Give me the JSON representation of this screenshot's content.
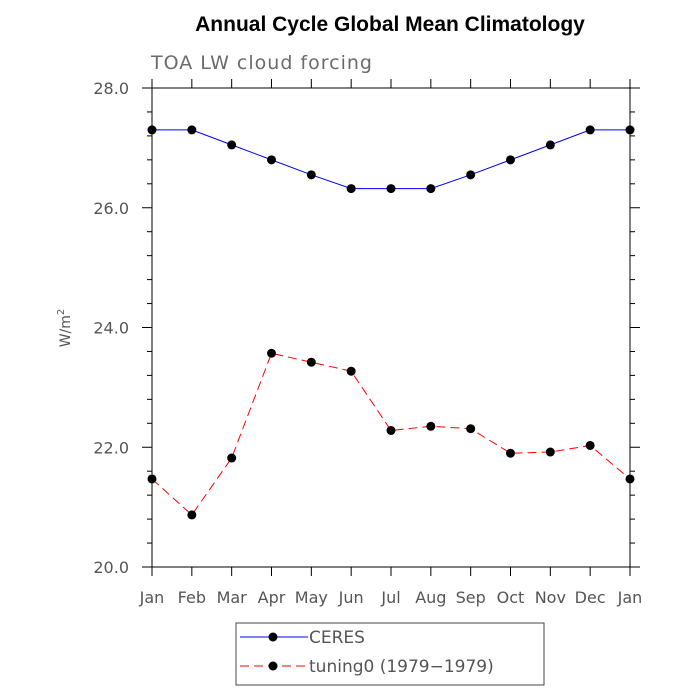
{
  "chart_data": {
    "type": "line",
    "title": "Annual Cycle Global Mean Climatology",
    "subtitle": "TOA LW cloud forcing",
    "xlabel": "",
    "ylabel": "W/m",
    "ylabel_superscript": "2",
    "categories": [
      "Jan",
      "Feb",
      "Mar",
      "Apr",
      "May",
      "Jun",
      "Jul",
      "Aug",
      "Sep",
      "Oct",
      "Nov",
      "Dec",
      "Jan"
    ],
    "yticks": [
      "20.0",
      "22.0",
      "24.0",
      "26.0",
      "28.0"
    ],
    "ylim": [
      20,
      28
    ],
    "grid": false,
    "legend_position": "bottom-center",
    "series": [
      {
        "name": "CERES",
        "color": "#0000ff",
        "line_style": "solid",
        "values": [
          27.3,
          27.3,
          27.05,
          26.8,
          26.55,
          26.32,
          26.32,
          26.32,
          26.55,
          26.8,
          27.05,
          27.3,
          27.3
        ]
      },
      {
        "name": "tuning0 (1979−1979)",
        "color": "#ff0000",
        "line_style": "dashed",
        "values": [
          21.47,
          20.87,
          21.82,
          23.57,
          23.42,
          23.27,
          22.28,
          22.35,
          22.31,
          21.9,
          21.92,
          22.03,
          21.47
        ]
      }
    ]
  }
}
